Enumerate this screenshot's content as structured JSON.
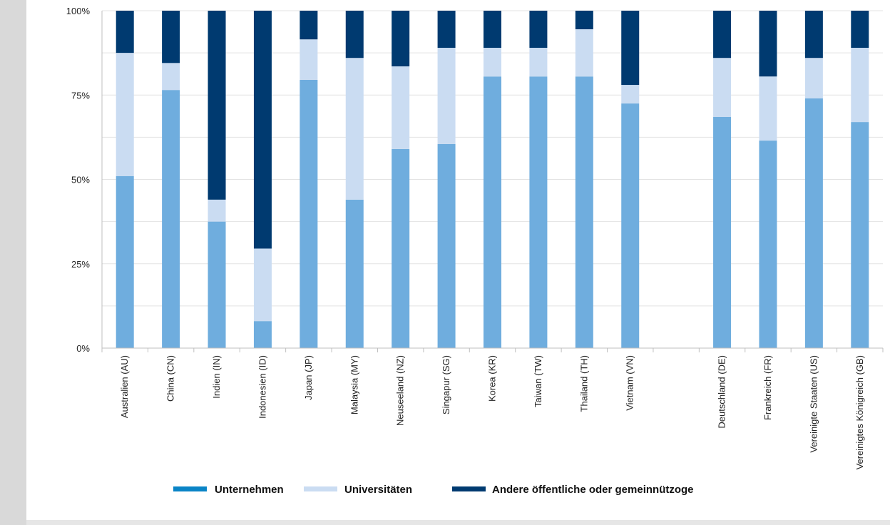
{
  "chart_data": {
    "type": "bar",
    "stacked": true,
    "percent": true,
    "categories": [
      "Australien (AU)",
      "China (CN)",
      "Indien (IN)",
      "Indonesien (ID)",
      "Japan (JP)",
      "Malaysia (MY)",
      "Neuseeland (NZ)",
      "Singapur (SG)",
      "Korea (KR)",
      "Taiwan (TW)",
      "Thailand (TH)",
      "Vietnam (VN)",
      "",
      "Deutschland (DE)",
      "Frankreich (FR)",
      "Vereinigte Staaten (US)",
      "Vereinigtes Königreich (GB)"
    ],
    "series": [
      {
        "name": "Unternehmen",
        "color": "#6fadde",
        "values": [
          51,
          76.5,
          37.5,
          8,
          79.5,
          44,
          59,
          60.5,
          80.5,
          80.5,
          80.5,
          72.5,
          null,
          68.5,
          61.5,
          74,
          67
        ]
      },
      {
        "name": "Universitäten",
        "color": "#cadcf2",
        "values": [
          36.5,
          8,
          6.5,
          21.5,
          12,
          42,
          24.5,
          28.5,
          8.5,
          8.5,
          14,
          5.5,
          null,
          17.5,
          19,
          12,
          22
        ]
      },
      {
        "name": "Andere öffentliche oder gemeinnützoge",
        "color": "#003a70",
        "values": [
          12.5,
          15.5,
          56,
          70.5,
          8.5,
          14,
          16.5,
          11,
          11,
          11,
          5.5,
          22,
          null,
          14,
          19.5,
          14,
          11
        ]
      }
    ],
    "yticks": [
      "0%",
      "25%",
      "50%",
      "75%",
      "100%"
    ],
    "ylim": [
      0,
      100
    ],
    "grid": true,
    "legend_position": "bottom"
  },
  "colors": {
    "gridline": "#e3e3e3",
    "axis": "#bfbfbf",
    "unternehmen_legend": "#0a84c6"
  }
}
